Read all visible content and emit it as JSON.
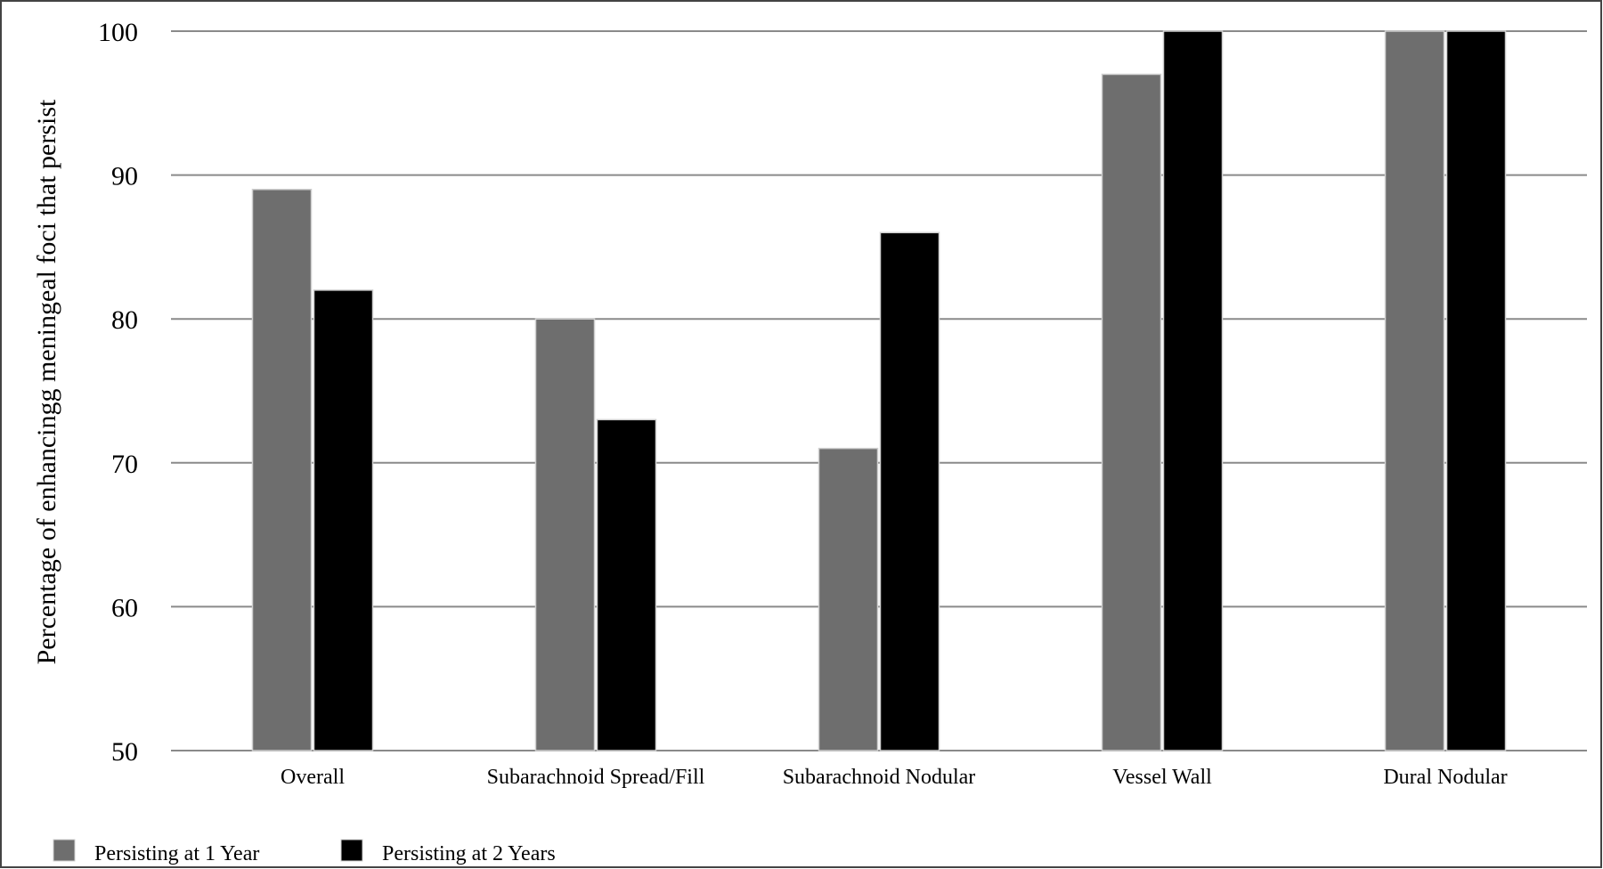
{
  "chart_data": {
    "type": "bar",
    "title": "",
    "xlabel": "",
    "ylabel": "Percentage of enhancingg meningeal foci that persist",
    "categories": [
      "Overall",
      "Subarachnoid Spread/Fill",
      "Subarachnoid Nodular",
      "Vessel Wall",
      "Dural Nodular"
    ],
    "series": [
      {
        "name": "Persisting at 1 Year",
        "color": "#6e6e6e",
        "values": [
          89,
          80,
          71,
          97,
          100
        ]
      },
      {
        "name": "Persisting at 2 Years",
        "color": "#000000",
        "values": [
          82,
          73,
          86,
          100,
          100
        ]
      }
    ],
    "ylim": [
      50,
      100
    ],
    "yticks": [
      50,
      60,
      70,
      80,
      90,
      100
    ],
    "grid": true,
    "legend": "bottom-left"
  }
}
